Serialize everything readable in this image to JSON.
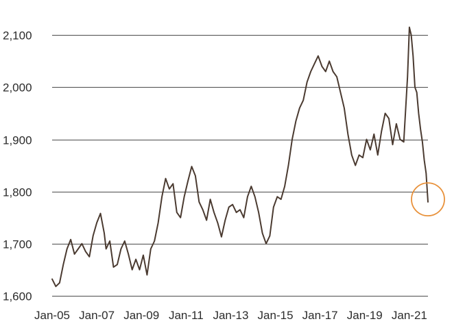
{
  "chart_data": {
    "type": "line",
    "title": "",
    "xlabel": "",
    "ylabel": "",
    "ylim": [
      1600,
      2120
    ],
    "xlim": [
      "2005-01",
      "2021-11"
    ],
    "grid": "horizontal",
    "legend": "none",
    "y_ticks": [
      {
        "value": 1600,
        "label": "1,600"
      },
      {
        "value": 1700,
        "label": "1,700"
      },
      {
        "value": 1800,
        "label": "1,800"
      },
      {
        "value": 1900,
        "label": "1,900"
      },
      {
        "value": 2000,
        "label": "2,000"
      },
      {
        "value": 2100,
        "label": "2,100"
      }
    ],
    "x_ticks": [
      {
        "value": "2005-01",
        "label": "Jan-05"
      },
      {
        "value": "2007-01",
        "label": "Jan-07"
      },
      {
        "value": "2009-01",
        "label": "Jan-09"
      },
      {
        "value": "2011-01",
        "label": "Jan-11"
      },
      {
        "value": "2013-01",
        "label": "Jan-13"
      },
      {
        "value": "2015-01",
        "label": "Jan-15"
      },
      {
        "value": "2017-01",
        "label": "Jan-17"
      },
      {
        "value": "2019-01",
        "label": "Jan-19"
      },
      {
        "value": "2021-01",
        "label": "Jan-21"
      }
    ],
    "series": [
      {
        "color": "#4a3a30",
        "points": [
          [
            "2005-01",
            1632
          ],
          [
            "2005-03",
            1618
          ],
          [
            "2005-05",
            1625
          ],
          [
            "2005-07",
            1660
          ],
          [
            "2005-09",
            1690
          ],
          [
            "2005-11",
            1708
          ],
          [
            "2006-01",
            1680
          ],
          [
            "2006-03",
            1690
          ],
          [
            "2006-05",
            1700
          ],
          [
            "2006-07",
            1685
          ],
          [
            "2006-09",
            1675
          ],
          [
            "2006-11",
            1715
          ],
          [
            "2007-01",
            1740
          ],
          [
            "2007-03",
            1758
          ],
          [
            "2007-05",
            1720
          ],
          [
            "2007-06",
            1690
          ],
          [
            "2007-08",
            1705
          ],
          [
            "2007-10",
            1655
          ],
          [
            "2007-12",
            1660
          ],
          [
            "2008-02",
            1690
          ],
          [
            "2008-04",
            1705
          ],
          [
            "2008-06",
            1680
          ],
          [
            "2008-08",
            1650
          ],
          [
            "2008-10",
            1670
          ],
          [
            "2008-12",
            1650
          ],
          [
            "2009-02",
            1678
          ],
          [
            "2009-04",
            1640
          ],
          [
            "2009-06",
            1690
          ],
          [
            "2009-08",
            1705
          ],
          [
            "2009-10",
            1740
          ],
          [
            "2009-12",
            1790
          ],
          [
            "2010-02",
            1825
          ],
          [
            "2010-04",
            1805
          ],
          [
            "2010-06",
            1815
          ],
          [
            "2010-08",
            1760
          ],
          [
            "2010-10",
            1750
          ],
          [
            "2010-12",
            1790
          ],
          [
            "2011-02",
            1820
          ],
          [
            "2011-04",
            1848
          ],
          [
            "2011-06",
            1830
          ],
          [
            "2011-08",
            1780
          ],
          [
            "2011-10",
            1765
          ],
          [
            "2011-12",
            1745
          ],
          [
            "2012-02",
            1785
          ],
          [
            "2012-04",
            1760
          ],
          [
            "2012-06",
            1740
          ],
          [
            "2012-08",
            1713
          ],
          [
            "2012-10",
            1745
          ],
          [
            "2012-12",
            1770
          ],
          [
            "2013-02",
            1775
          ],
          [
            "2013-04",
            1760
          ],
          [
            "2013-06",
            1765
          ],
          [
            "2013-08",
            1750
          ],
          [
            "2013-10",
            1790
          ],
          [
            "2013-12",
            1810
          ],
          [
            "2014-02",
            1790
          ],
          [
            "2014-04",
            1760
          ],
          [
            "2014-06",
            1720
          ],
          [
            "2014-08",
            1700
          ],
          [
            "2014-10",
            1715
          ],
          [
            "2014-12",
            1770
          ],
          [
            "2015-02",
            1790
          ],
          [
            "2015-04",
            1785
          ],
          [
            "2015-06",
            1810
          ],
          [
            "2015-08",
            1850
          ],
          [
            "2015-10",
            1900
          ],
          [
            "2015-12",
            1935
          ],
          [
            "2016-02",
            1960
          ],
          [
            "2016-04",
            1975
          ],
          [
            "2016-06",
            2010
          ],
          [
            "2016-08",
            2030
          ],
          [
            "2016-10",
            2045
          ],
          [
            "2016-12",
            2060
          ],
          [
            "2017-02",
            2040
          ],
          [
            "2017-04",
            2030
          ],
          [
            "2017-06",
            2050
          ],
          [
            "2017-08",
            2030
          ],
          [
            "2017-10",
            2020
          ],
          [
            "2017-12",
            1990
          ],
          [
            "2018-02",
            1960
          ],
          [
            "2018-04",
            1910
          ],
          [
            "2018-06",
            1870
          ],
          [
            "2018-08",
            1850
          ],
          [
            "2018-10",
            1870
          ],
          [
            "2018-12",
            1865
          ],
          [
            "2019-02",
            1900
          ],
          [
            "2019-04",
            1880
          ],
          [
            "2019-06",
            1910
          ],
          [
            "2019-08",
            1870
          ],
          [
            "2019-10",
            1915
          ],
          [
            "2019-12",
            1950
          ],
          [
            "2020-02",
            1940
          ],
          [
            "2020-04",
            1890
          ],
          [
            "2020-06",
            1930
          ],
          [
            "2020-08",
            1900
          ],
          [
            "2020-10",
            1895
          ],
          [
            "2020-12",
            2020
          ],
          [
            "2021-01",
            2115
          ],
          [
            "2021-02",
            2100
          ],
          [
            "2021-03",
            2060
          ],
          [
            "2021-04",
            2000
          ],
          [
            "2021-05",
            1990
          ],
          [
            "2021-06",
            1950
          ],
          [
            "2021-07",
            1920
          ],
          [
            "2021-08",
            1895
          ],
          [
            "2021-09",
            1860
          ],
          [
            "2021-10",
            1835
          ],
          [
            "2021-11",
            1780
          ]
        ]
      }
    ],
    "annotations": [
      {
        "type": "circle",
        "x": "2021-11",
        "y": 1785,
        "color": "#e8913a"
      }
    ]
  }
}
